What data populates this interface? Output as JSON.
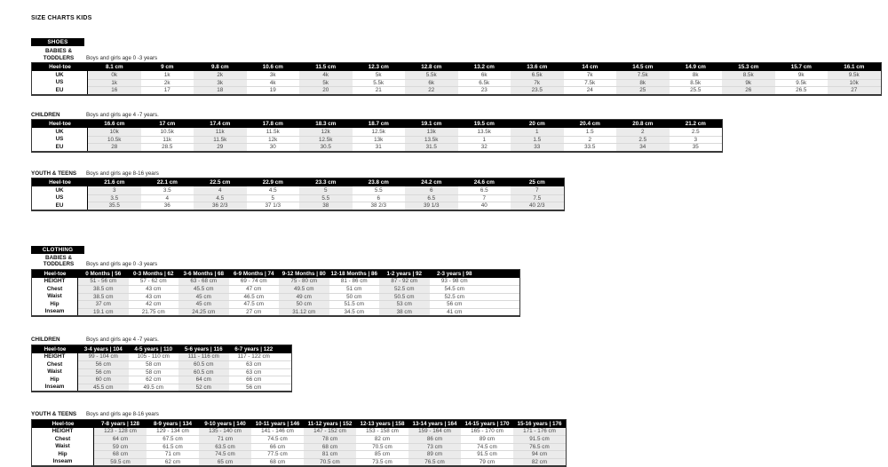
{
  "page_title": "SIZE CHARTS KIDS",
  "colors": {
    "header_bg": "#000000",
    "stripe": "#ebebeb",
    "row_line": "#d9d9d9",
    "table_border": "#383838"
  },
  "sections": [
    {
      "id": "shoes",
      "bar_label": "SHOES",
      "tables": [
        {
          "id": "shoes-babies",
          "label_lines": [
            "BABIES &",
            "TODDLERS"
          ],
          "sub_label": "Boys and girls age 0 -3 years",
          "corner_label": "Heel-toe",
          "columns": [
            "8.1 cm",
            "9 cm",
            "9.8 cm",
            "10.6 cm",
            "11.5 cm",
            "12.3 cm",
            "12.8 cm",
            "13.2 cm",
            "13.6 cm",
            "14 cm",
            "14.5 cm",
            "14.9 cm",
            "15.3 cm",
            "15.7 cm",
            "16.1 cm"
          ],
          "rows": [
            {
              "label": "UK",
              "values": [
                "0k",
                "1k",
                "2k",
                "3k",
                "4k",
                "5k",
                "5.5k",
                "6k",
                "6.5k",
                "7k",
                "7.5k",
                "8k",
                "8.5k",
                "9k",
                "9.5k"
              ]
            },
            {
              "label": "US",
              "values": [
                "1k",
                "2k",
                "3k",
                "4k",
                "5k",
                "5.5k",
                "6k",
                "6.5k",
                "7k",
                "7.5k",
                "8k",
                "8.5k",
                "9k",
                "9.5k",
                "10k"
              ]
            },
            {
              "label": "EU",
              "values": [
                "16",
                "17",
                "18",
                "19",
                "20",
                "21",
                "22",
                "23",
                "23.5",
                "24",
                "25",
                "25.5",
                "26",
                "26.5",
                "27"
              ]
            }
          ]
        },
        {
          "id": "shoes-children",
          "label_lines": [
            "CHILDREN"
          ],
          "sub_label": "Boys and girls age 4 -7 years.",
          "corner_label": "Heel-toe",
          "columns": [
            "16.6 cm",
            "17 cm",
            "17.4 cm",
            "17.8 cm",
            "18.3 cm",
            "18.7 cm",
            "19.1 cm",
            "19.5 cm",
            "20 cm",
            "20.4 cm",
            "20.8 cm",
            "21.2 cm"
          ],
          "rows": [
            {
              "label": "UK",
              "values": [
                "10k",
                "10.5k",
                "11k",
                "11.5k",
                "12k",
                "12.5k",
                "13k",
                "13.5k",
                "1",
                "1.5",
                "2",
                "2.5"
              ]
            },
            {
              "label": "US",
              "values": [
                "10.5k",
                "11k",
                "11.5k",
                "12k",
                "12.5k",
                "13k",
                "13.5k",
                "1",
                "1.5",
                "2",
                "2.5",
                "3"
              ]
            },
            {
              "label": "EU",
              "values": [
                "28",
                "28.5",
                "29",
                "30",
                "30.5",
                "31",
                "31.5",
                "32",
                "33",
                "33.5",
                "34",
                "35"
              ]
            }
          ]
        },
        {
          "id": "shoes-youth",
          "label_lines": [
            "YOUTH & TEENS"
          ],
          "sub_label": "Boys and girls age 8-16 years",
          "corner_label": "Heel-toe",
          "columns": [
            "21.6 cm",
            "22.1 cm",
            "22.5 cm",
            "22.9 cm",
            "23.3 cm",
            "23.8 cm",
            "24.2 cm",
            "24.6 cm",
            "25 cm"
          ],
          "rows": [
            {
              "label": "UK",
              "values": [
                "3",
                "3.5",
                "4",
                "4.5",
                "5",
                "5.5",
                "6",
                "6.5",
                "7"
              ]
            },
            {
              "label": "US",
              "values": [
                "3.5",
                "4",
                "4.5",
                "5",
                "5.5",
                "6",
                "6.5",
                "7",
                "7.5"
              ]
            },
            {
              "label": "EU",
              "values": [
                "35.5",
                "36",
                "36 2/3",
                "37 1/3",
                "38",
                "38 2/3",
                "39 1/3",
                "40",
                "40 2/3"
              ]
            }
          ]
        }
      ]
    },
    {
      "id": "clothing",
      "bar_label": "CLOTHING",
      "tables": [
        {
          "id": "clothing-babies",
          "label_lines": [
            "BABIES &",
            "TODDLERS"
          ],
          "sub_label": "Boys and girls age 0 -3 years",
          "corner_label": "Heel-toe",
          "columns": [
            "0 Months | 56",
            "0-3 Months | 62",
            "3-6 Months | 68",
            "6-9 Months | 74",
            "9-12 Months | 80",
            "12-18 Months | 86",
            "1-2 years | 92",
            "2-3 years | 98"
          ],
          "rows": [
            {
              "label": "HEIGHT",
              "values": [
                "51 - 56 cm",
                "57 - 62 cm",
                "63 - 68 cm",
                "69 - 74 cm",
                "75 - 80 cm",
                "81 - 86 cm",
                "87 - 92 cm",
                "93 - 98 cm"
              ]
            },
            {
              "label": "Chest",
              "values": [
                "38.5 cm",
                "43 cm",
                "45.5 cm",
                "47 cm",
                "49.5 cm",
                "51 cm",
                "52.5 cm",
                "54.5 cm"
              ]
            },
            {
              "label": "Waist",
              "values": [
                "38.5 cm",
                "43 cm",
                "45 cm",
                "46.5 cm",
                "49 cm",
                "50 cm",
                "50.5 cm",
                "52.5 cm"
              ]
            },
            {
              "label": "Hip",
              "values": [
                "37 cm",
                "42 cm",
                "45 cm",
                "47.5 cm",
                "50 cm",
                "51.5 cm",
                "53 cm",
                "56 cm"
              ]
            },
            {
              "label": "Inseam",
              "values": [
                "19.1 cm",
                "21.75 cm",
                "24.25 cm",
                "27 cm",
                "31.12 cm",
                "34.5 cm",
                "38 cm",
                "41 cm"
              ]
            }
          ]
        },
        {
          "id": "clothing-children",
          "label_lines": [
            "CHILDREN"
          ],
          "sub_label": "Boys and girls age 4 -7 years.",
          "corner_label": "Heel-toe",
          "columns": [
            "3-4 years | 104",
            "4-5 years | 110",
            "5-6 years | 116",
            "6-7 years | 122"
          ],
          "rows": [
            {
              "label": "HEIGHT",
              "values": [
                "99 - 104 cm",
                "105 - 110 cm",
                "111 - 116 cm",
                "117 - 122 cm"
              ]
            },
            {
              "label": "Chest",
              "values": [
                "56 cm",
                "58 cm",
                "60.5 cm",
                "63 cm"
              ]
            },
            {
              "label": "Waist",
              "values": [
                "56 cm",
                "58 cm",
                "60.5 cm",
                "63 cm"
              ]
            },
            {
              "label": "Hip",
              "values": [
                "60 cm",
                "62 cm",
                "64 cm",
                "66 cm"
              ]
            },
            {
              "label": "Inseam",
              "values": [
                "45.5 cm",
                "49.5 cm",
                "52 cm",
                "56 cm"
              ]
            }
          ]
        },
        {
          "id": "clothing-youth",
          "label_lines": [
            "YOUTH & TEENS"
          ],
          "sub_label": "Boys and girls age 8-16 years",
          "corner_label": "Heel-toe",
          "columns": [
            "7-8 years | 128",
            "8-9 years | 134",
            "9-10 years | 140",
            "10-11 years | 146",
            "11-12 years | 152",
            "12-13 years | 158",
            "13-14 years | 164",
            "14-15 years | 170",
            "15-16 years | 176"
          ],
          "rows": [
            {
              "label": "HEIGHT",
              "values": [
                "123 - 128 cm",
                "129 - 134 cm",
                "135 - 140 cm",
                "141 - 146 cm",
                "147 - 152 cm",
                "153 - 158 cm",
                "159 - 164 cm",
                "165 - 170 cm",
                "171 - 176 cm"
              ]
            },
            {
              "label": "Chest",
              "values": [
                "64 cm",
                "67.5 cm",
                "71 cm",
                "74.5 cm",
                "78 cm",
                "82 cm",
                "86 cm",
                "89 cm",
                "91.5 cm"
              ]
            },
            {
              "label": "Waist",
              "values": [
                "59 cm",
                "61.5 cm",
                "63.5 cm",
                "66 cm",
                "68 cm",
                "70.5 cm",
                "73 cm",
                "74.5 cm",
                "76.5 cm"
              ]
            },
            {
              "label": "Hip",
              "values": [
                "68 cm",
                "71 cm",
                "74.5 cm",
                "77.5 cm",
                "81 cm",
                "85 cm",
                "89 cm",
                "91.5 cm",
                "94 cm"
              ]
            },
            {
              "label": "Inseam",
              "values": [
                "59.5 cm",
                "62 cm",
                "65 cm",
                "68 cm",
                "70.5 cm",
                "73.5 cm",
                "76.5 cm",
                "79 cm",
                "82 cm"
              ]
            }
          ]
        }
      ]
    }
  ]
}
